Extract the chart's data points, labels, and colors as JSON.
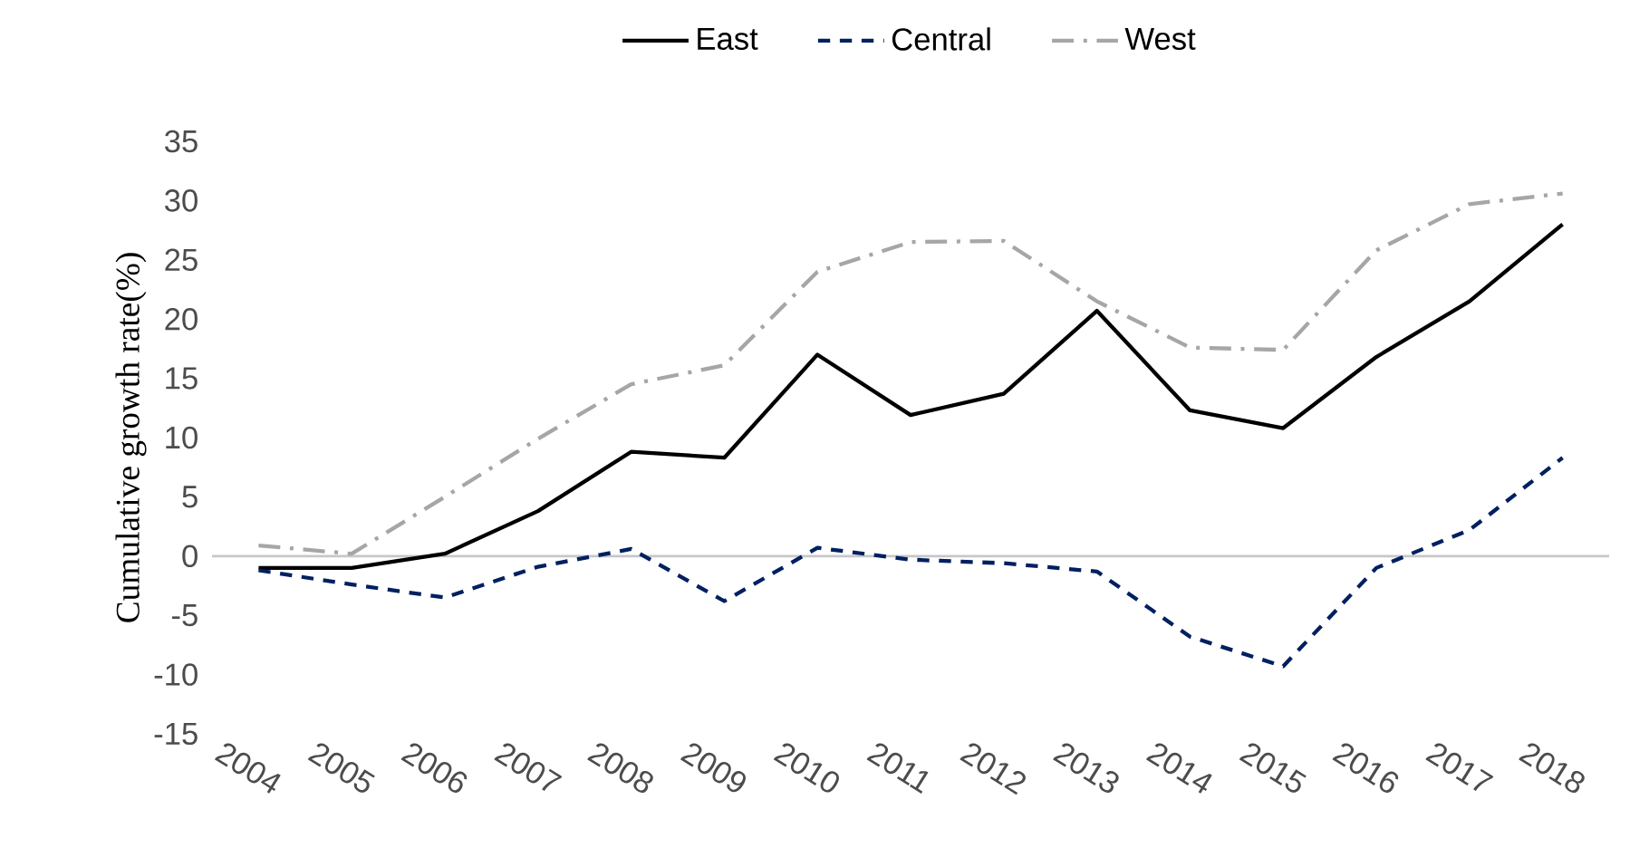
{
  "chart_data": {
    "type": "line",
    "ylabel": "Cumulative growth rate(%)",
    "categories": [
      "2004",
      "2005",
      "2006",
      "2007",
      "2008",
      "2009",
      "2010",
      "2011",
      "2012",
      "2013",
      "2014",
      "2015",
      "2016",
      "2017",
      "2018"
    ],
    "series": [
      {
        "name": "East",
        "color": "#000000",
        "line_style": "solid",
        "values": [
          -1.0,
          -1.0,
          0.2,
          3.8,
          8.8,
          8.3,
          17.0,
          11.9,
          13.7,
          20.7,
          12.3,
          10.8,
          16.8,
          21.5,
          28.0
        ]
      },
      {
        "name": "Central",
        "color": "#002060",
        "line_style": "dashed",
        "values": [
          -1.2,
          -2.4,
          -3.5,
          -0.9,
          0.6,
          -3.8,
          0.7,
          -0.3,
          -0.6,
          -1.3,
          -6.8,
          -9.3,
          -1.0,
          2.2,
          8.3
        ]
      },
      {
        "name": "West",
        "color": "#a6a6a6",
        "line_style": "dashdot",
        "values": [
          0.9,
          0.2,
          5.0,
          9.9,
          14.5,
          16.1,
          24.0,
          26.5,
          26.6,
          21.5,
          17.6,
          17.4,
          25.8,
          29.7,
          30.6
        ]
      }
    ],
    "ylim": [
      -15,
      35
    ],
    "yticks": [
      -15,
      -10,
      -5,
      0,
      5,
      10,
      15,
      20,
      25,
      30,
      35
    ],
    "legend": "top",
    "marker": "none"
  }
}
